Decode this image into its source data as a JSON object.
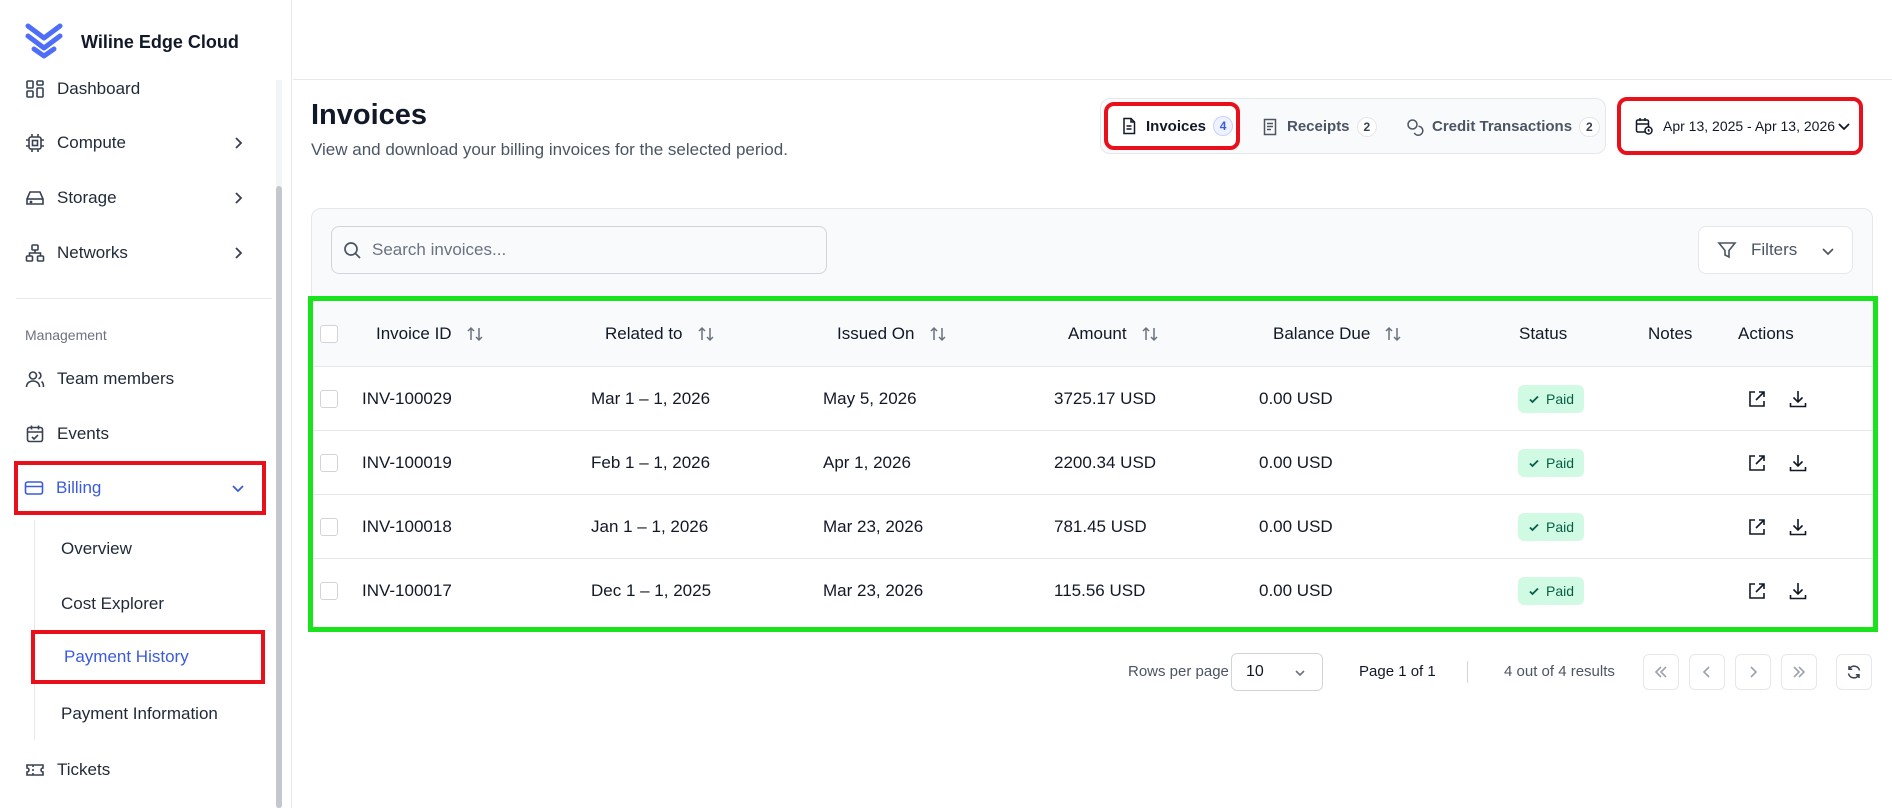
{
  "brand": {
    "name": "Wiline Edge Cloud",
    "logo_icon": "wiline-logo-icon"
  },
  "sidebar": {
    "items": [
      {
        "label": "Dashboard",
        "icon": "grid-icon"
      },
      {
        "label": "Compute",
        "icon": "cpu-icon"
      },
      {
        "label": "Storage",
        "icon": "hard-drive-icon"
      },
      {
        "label": "Networks",
        "icon": "network-icon"
      }
    ],
    "section_label": "Management",
    "management_items": [
      {
        "label": "Team members",
        "icon": "users-icon"
      },
      {
        "label": "Events",
        "icon": "calendar-icon"
      },
      {
        "label": "Billing",
        "icon": "credit-card-icon"
      }
    ],
    "billing_sub_items": [
      {
        "label": "Overview"
      },
      {
        "label": "Cost Explorer"
      },
      {
        "label": "Payment History"
      },
      {
        "label": "Payment Information"
      }
    ],
    "tickets": {
      "label": "Tickets",
      "icon": "ticket-icon"
    }
  },
  "main": {
    "title": "Invoices",
    "subtitle": "View and download your billing invoices for the selected period.",
    "tabs": [
      {
        "label": "Invoices",
        "count": "4",
        "icon": "file-text-icon"
      },
      {
        "label": "Receipts",
        "count": "2",
        "icon": "receipt-icon"
      },
      {
        "label": "Credit Transactions",
        "count": "2",
        "icon": "coins-icon"
      }
    ],
    "date_range": "Apr 13, 2025 - Apr 13, 2026",
    "search": {
      "placeholder": "Search invoices...",
      "value": ""
    },
    "filters_label": "Filters"
  },
  "table": {
    "columns": {
      "invoice_id": "Invoice ID",
      "related_to": "Related to",
      "issued_on": "Issued On",
      "amount": "Amount",
      "balance_due": "Balance Due",
      "status": "Status",
      "notes": "Notes",
      "actions": "Actions"
    },
    "rows": [
      {
        "invoice_id": "INV-100029",
        "related_to": "Mar 1 – 1, 2026",
        "issued_on": "May 5, 2026",
        "amount": "3725.17 USD",
        "balance_due": "0.00 USD",
        "status": "Paid"
      },
      {
        "invoice_id": "INV-100019",
        "related_to": "Feb 1 – 1, 2026",
        "issued_on": "Apr 1, 2026",
        "amount": "2200.34 USD",
        "balance_due": "0.00 USD",
        "status": "Paid"
      },
      {
        "invoice_id": "INV-100018",
        "related_to": "Jan 1 – 1, 2026",
        "issued_on": "Mar 23, 2026",
        "amount": "781.45 USD",
        "balance_due": "0.00 USD",
        "status": "Paid"
      },
      {
        "invoice_id": "INV-100017",
        "related_to": "Dec 1 – 1, 2025",
        "issued_on": "Mar 23, 2026",
        "amount": "115.56 USD",
        "balance_due": "0.00 USD",
        "status": "Paid"
      }
    ]
  },
  "pagination": {
    "rows_per_page_label": "Rows per page",
    "rows_per_page": "10",
    "page_text": "Page 1 of 1",
    "results_text": "4 out of 4 results"
  },
  "colors": {
    "accent": "#3b5bdb",
    "highlight_red": "#e8101a",
    "highlight_green": "#19e31c",
    "paid_bg": "#d1fae5",
    "paid_text": "#065f46"
  }
}
